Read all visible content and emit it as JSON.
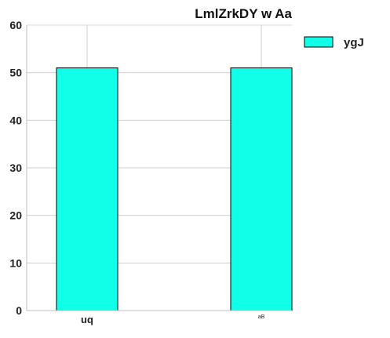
{
  "chart_data": {
    "type": "bar",
    "title": "LmlZrkDY  w Aa",
    "xlabel": "",
    "ylabel": "",
    "categories": [
      "uq",
      "aB"
    ],
    "series": [
      {
        "name": "ygJ",
        "values": [
          51,
          51
        ],
        "color": "#11ffe9"
      }
    ],
    "ylim": [
      0,
      60
    ],
    "yticks": [
      0,
      10,
      20,
      30,
      40,
      50,
      60
    ],
    "grid": true,
    "legend": "top-right outside"
  }
}
